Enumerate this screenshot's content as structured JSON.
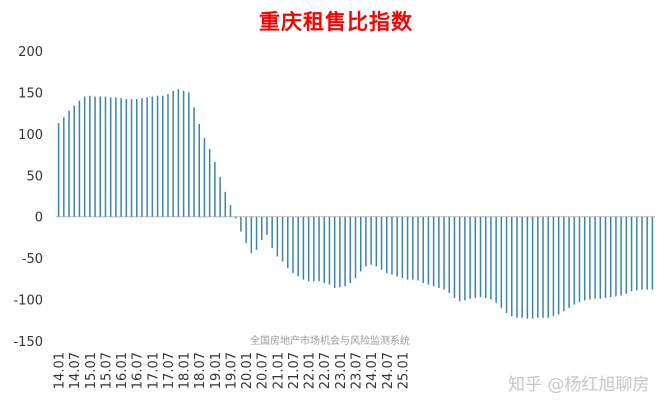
{
  "chart_data": {
    "type": "bar",
    "title": "重庆租售比指数",
    "watermark": "全国房地产市场机会与风险监测系统",
    "credit": "知乎 @杨红旭聊房",
    "bar_color": "#3a84b4",
    "ylim": [
      -150,
      200
    ],
    "yticks": [
      200,
      150,
      100,
      50,
      0,
      -50,
      -100,
      -150
    ],
    "grid": false,
    "x_tick_labels": [
      "14.01",
      "14.07",
      "15.01",
      "15.07",
      "16.01",
      "16.07",
      "17.01",
      "17.07",
      "18.01",
      "18.07",
      "19.01",
      "19.07",
      "20.01",
      "20.07",
      "21.01",
      "21.07",
      "22.01",
      "22.07",
      "23.01",
      "23.07",
      "24.01",
      "24.07",
      "25.01"
    ],
    "x_start": "2014.01",
    "x_step_months": 2,
    "values": [
      113,
      120,
      128,
      134,
      140,
      145,
      146,
      145,
      145,
      145,
      144,
      144,
      143,
      142,
      142,
      142,
      143,
      144,
      145,
      146,
      146,
      148,
      152,
      154,
      152,
      150,
      132,
      112,
      95,
      82,
      66,
      48,
      30,
      14,
      -2,
      -18,
      -32,
      -44,
      -40,
      -28,
      -22,
      -38,
      -48,
      -54,
      -62,
      -68,
      -72,
      -76,
      -78,
      -78,
      -78,
      -80,
      -82,
      -86,
      -85,
      -84,
      -80,
      -74,
      -66,
      -60,
      -58,
      -60,
      -64,
      -68,
      -70,
      -72,
      -74,
      -76,
      -76,
      -77,
      -80,
      -82,
      -84,
      -86,
      -88,
      -92,
      -98,
      -102,
      -101,
      -99,
      -98,
      -97,
      -98,
      -100,
      -104,
      -110,
      -116,
      -120,
      -122,
      -122,
      -123,
      -123,
      -122,
      -122,
      -122,
      -120,
      -118,
      -114,
      -110,
      -106,
      -103,
      -101,
      -100,
      -99,
      -99,
      -98,
      -97,
      -96,
      -95,
      -93,
      -90,
      -89,
      -88,
      -88,
      -88
    ]
  }
}
